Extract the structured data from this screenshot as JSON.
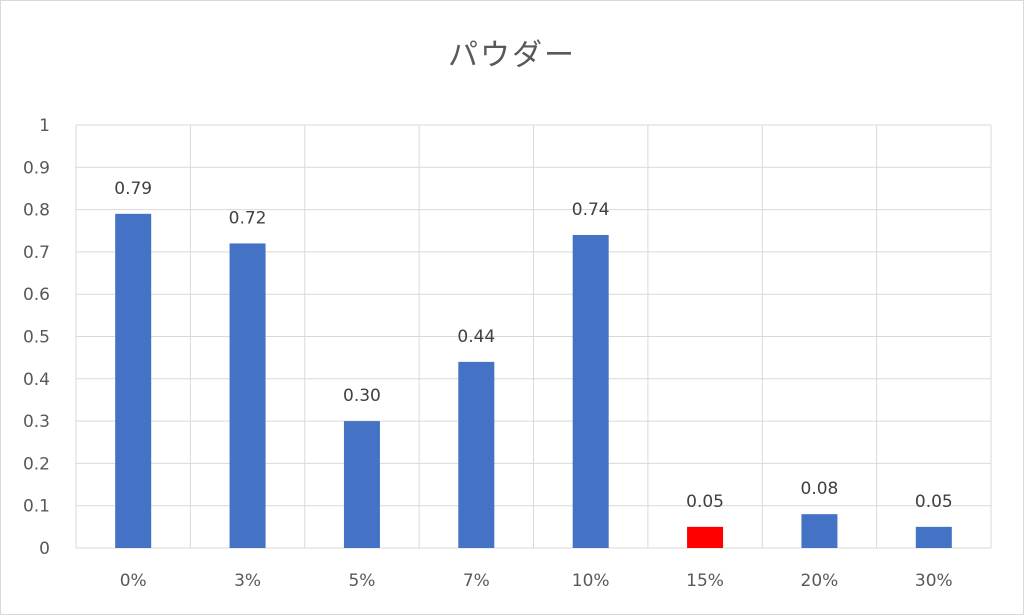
{
  "chart_data": {
    "type": "bar",
    "title": "パウダー",
    "categories": [
      "0%",
      "3%",
      "5%",
      "7%",
      "10%",
      "15%",
      "20%",
      "30%"
    ],
    "values": [
      0.79,
      0.72,
      0.3,
      0.44,
      0.74,
      0.05,
      0.08,
      0.05
    ],
    "data_labels": [
      "0.79",
      "0.72",
      "0.30",
      "0.44",
      "0.74",
      "0.05",
      "0.08",
      "0.05"
    ],
    "ylim": [
      0,
      1
    ],
    "yticks": [
      0,
      0.1,
      0.2,
      0.3,
      0.4,
      0.5,
      0.6,
      0.7,
      0.8,
      0.9,
      1
    ],
    "ytick_labels": [
      "0",
      "0.1",
      "0.2",
      "0.3",
      "0.4",
      "0.5",
      "0.6",
      "0.7",
      "0.8",
      "0.9",
      "1"
    ],
    "xlabel": "",
    "ylabel": "",
    "grid": true,
    "colors": {
      "bar": "#4472C4",
      "highlight_bar": "#FF0000",
      "grid": "#d9d9d9"
    },
    "highlight_category": "15%"
  }
}
